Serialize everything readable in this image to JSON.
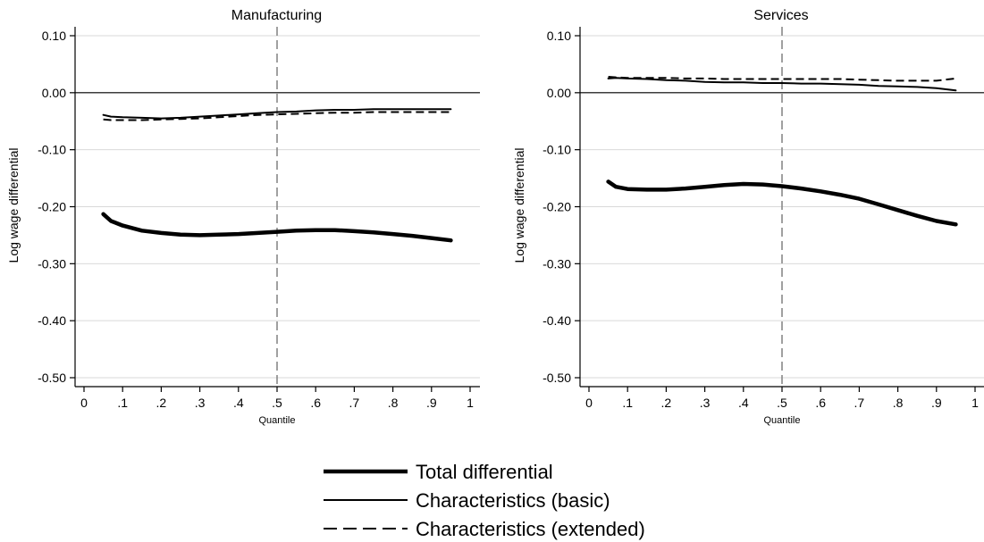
{
  "chart_data": [
    {
      "type": "line",
      "title": "Manufacturing",
      "xlabel": "Quantile",
      "ylabel": "Log wage differential",
      "xlim": [
        0,
        1
      ],
      "ylim": [
        -0.5,
        0.1
      ],
      "xticks": [
        0,
        0.1,
        0.2,
        0.3,
        0.4,
        0.5,
        0.6,
        0.7,
        0.8,
        0.9,
        1
      ],
      "xtick_labels": [
        "0",
        ".1",
        ".2",
        ".3",
        ".4",
        ".5",
        ".6",
        ".7",
        ".8",
        ".9",
        "1"
      ],
      "yticks": [
        -0.5,
        -0.4,
        -0.3,
        -0.2,
        -0.1,
        0,
        0.1
      ],
      "ytick_labels": [
        "-0.50",
        "-0.40",
        "-0.30",
        "-0.20",
        "-0.10",
        "0.00",
        "0.10"
      ],
      "grid": true,
      "reference_lines": [
        {
          "axis": "y",
          "value": 0,
          "style": "solid"
        },
        {
          "axis": "x",
          "value": 0.5,
          "style": "dashed"
        }
      ],
      "x": [
        0.05,
        0.07,
        0.1,
        0.15,
        0.2,
        0.25,
        0.3,
        0.35,
        0.4,
        0.45,
        0.5,
        0.55,
        0.6,
        0.65,
        0.7,
        0.75,
        0.8,
        0.85,
        0.9,
        0.95
      ],
      "series": [
        {
          "name": "Total differential",
          "values": [
            -0.213,
            -0.225,
            -0.233,
            -0.242,
            -0.246,
            -0.249,
            -0.25,
            -0.249,
            -0.248,
            -0.246,
            -0.244,
            -0.242,
            -0.241,
            -0.241,
            -0.243,
            -0.245,
            -0.248,
            -0.251,
            -0.255,
            -0.259
          ]
        },
        {
          "name": "Characteristics (basic)",
          "values": [
            -0.039,
            -0.042,
            -0.043,
            -0.044,
            -0.045,
            -0.044,
            -0.042,
            -0.04,
            -0.038,
            -0.036,
            -0.034,
            -0.033,
            -0.031,
            -0.03,
            -0.03,
            -0.029,
            -0.029,
            -0.029,
            -0.029,
            -0.029
          ]
        },
        {
          "name": "Characteristics (extended)",
          "values": [
            -0.047,
            -0.048,
            -0.048,
            -0.048,
            -0.047,
            -0.046,
            -0.045,
            -0.043,
            -0.041,
            -0.039,
            -0.038,
            -0.037,
            -0.036,
            -0.035,
            -0.035,
            -0.034,
            -0.034,
            -0.034,
            -0.034,
            -0.034
          ]
        }
      ]
    },
    {
      "type": "line",
      "title": "Services",
      "xlabel": "Quantile",
      "ylabel": "Log wage differential",
      "xlim": [
        0,
        1
      ],
      "ylim": [
        -0.5,
        0.1
      ],
      "xticks": [
        0,
        0.1,
        0.2,
        0.3,
        0.4,
        0.5,
        0.6,
        0.7,
        0.8,
        0.9,
        1
      ],
      "xtick_labels": [
        "0",
        ".1",
        ".2",
        ".3",
        ".4",
        ".5",
        ".6",
        ".7",
        ".8",
        ".9",
        "1"
      ],
      "yticks": [
        -0.5,
        -0.4,
        -0.3,
        -0.2,
        -0.1,
        0,
        0.1
      ],
      "ytick_labels": [
        "-0.50",
        "-0.40",
        "-0.30",
        "-0.20",
        "-0.10",
        "0.00",
        "0.10"
      ],
      "grid": true,
      "reference_lines": [
        {
          "axis": "y",
          "value": 0,
          "style": "solid"
        },
        {
          "axis": "x",
          "value": 0.5,
          "style": "dashed"
        }
      ],
      "x": [
        0.05,
        0.07,
        0.1,
        0.15,
        0.2,
        0.25,
        0.3,
        0.35,
        0.4,
        0.45,
        0.5,
        0.55,
        0.6,
        0.65,
        0.7,
        0.75,
        0.8,
        0.85,
        0.9,
        0.95
      ],
      "series": [
        {
          "name": "Total differential",
          "values": [
            -0.156,
            -0.165,
            -0.169,
            -0.17,
            -0.17,
            -0.168,
            -0.165,
            -0.162,
            -0.16,
            -0.161,
            -0.164,
            -0.168,
            -0.173,
            -0.179,
            -0.186,
            -0.196,
            -0.206,
            -0.216,
            -0.225,
            -0.231
          ]
        },
        {
          "name": "Characteristics (basic)",
          "values": [
            0.025,
            0.026,
            0.025,
            0.024,
            0.022,
            0.021,
            0.019,
            0.018,
            0.018,
            0.017,
            0.017,
            0.016,
            0.016,
            0.015,
            0.014,
            0.012,
            0.011,
            0.01,
            0.008,
            0.004
          ]
        },
        {
          "name": "Characteristics (extended)",
          "values": [
            0.028,
            0.027,
            0.026,
            0.026,
            0.026,
            0.025,
            0.025,
            0.024,
            0.024,
            0.024,
            0.024,
            0.024,
            0.024,
            0.024,
            0.023,
            0.022,
            0.021,
            0.021,
            0.021,
            0.025
          ]
        }
      ]
    }
  ],
  "legend": {
    "placement": "bottom-center",
    "items": [
      {
        "label": "Total differential",
        "style": "thick-solid"
      },
      {
        "label": "Characteristics (basic)",
        "style": "solid"
      },
      {
        "label": "Characteristics (extended)",
        "style": "dashed"
      }
    ]
  },
  "colors": {
    "line": "#000000",
    "grid": "#d9d9d9",
    "reference_dash": "#888888"
  }
}
